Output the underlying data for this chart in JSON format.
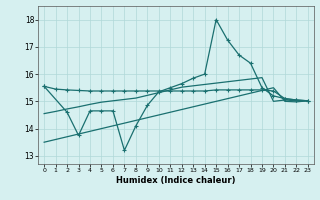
{
  "xlabel": "Humidex (Indice chaleur)",
  "background_color": "#d6f0f0",
  "grid_color": "#b0d8d8",
  "line_color": "#1a7070",
  "x_ticks": [
    0,
    1,
    2,
    3,
    4,
    5,
    6,
    7,
    8,
    9,
    10,
    11,
    12,
    13,
    14,
    15,
    16,
    17,
    18,
    19,
    20,
    21,
    22,
    23
  ],
  "y_ticks": [
    13,
    14,
    15,
    16,
    17,
    18
  ],
  "xlim": [
    -0.5,
    23.5
  ],
  "ylim": [
    12.7,
    18.5
  ],
  "line1_x": [
    0,
    1,
    2,
    3,
    4,
    5,
    6,
    7,
    8,
    9,
    10,
    11,
    12,
    13,
    14,
    15,
    16,
    17,
    18,
    19,
    20,
    21,
    22,
    23
  ],
  "line1_y": [
    15.55,
    15.45,
    15.42,
    15.4,
    15.38,
    15.38,
    15.38,
    15.38,
    15.38,
    15.38,
    15.38,
    15.38,
    15.38,
    15.38,
    15.38,
    15.42,
    15.42,
    15.42,
    15.42,
    15.42,
    15.38,
    15.1,
    15.05,
    15.02
  ],
  "line2_x": [
    0,
    2,
    3,
    4,
    5,
    6,
    7,
    8,
    9,
    10,
    11,
    12,
    13,
    14,
    15,
    16,
    17,
    18,
    19,
    20,
    21,
    22,
    23
  ],
  "line2_y": [
    15.55,
    14.6,
    13.75,
    14.65,
    14.65,
    14.65,
    13.2,
    14.1,
    14.85,
    15.35,
    15.5,
    15.65,
    15.85,
    16.0,
    18.0,
    17.25,
    16.7,
    16.4,
    15.5,
    15.2,
    15.1,
    15.05,
    15.02
  ],
  "line3_x": [
    0,
    1,
    2,
    3,
    4,
    5,
    6,
    7,
    8,
    9,
    10,
    11,
    12,
    13,
    14,
    15,
    16,
    17,
    18,
    19,
    20,
    21,
    22,
    23
  ],
  "line3_y": [
    13.5,
    13.6,
    13.7,
    13.8,
    13.9,
    14.0,
    14.1,
    14.2,
    14.3,
    14.4,
    14.5,
    14.6,
    14.7,
    14.8,
    14.9,
    15.0,
    15.1,
    15.2,
    15.3,
    15.4,
    15.5,
    15.0,
    14.98,
    15.02
  ],
  "line4_x": [
    0,
    1,
    2,
    3,
    4,
    5,
    6,
    7,
    8,
    9,
    10,
    11,
    12,
    13,
    14,
    15,
    16,
    17,
    18,
    19,
    20,
    21,
    22,
    23
  ],
  "line4_y": [
    14.55,
    14.63,
    14.72,
    14.8,
    14.89,
    14.97,
    15.02,
    15.07,
    15.12,
    15.22,
    15.32,
    15.42,
    15.52,
    15.57,
    15.62,
    15.67,
    15.72,
    15.77,
    15.82,
    15.87,
    15.0,
    15.05,
    15.02,
    15.02
  ]
}
